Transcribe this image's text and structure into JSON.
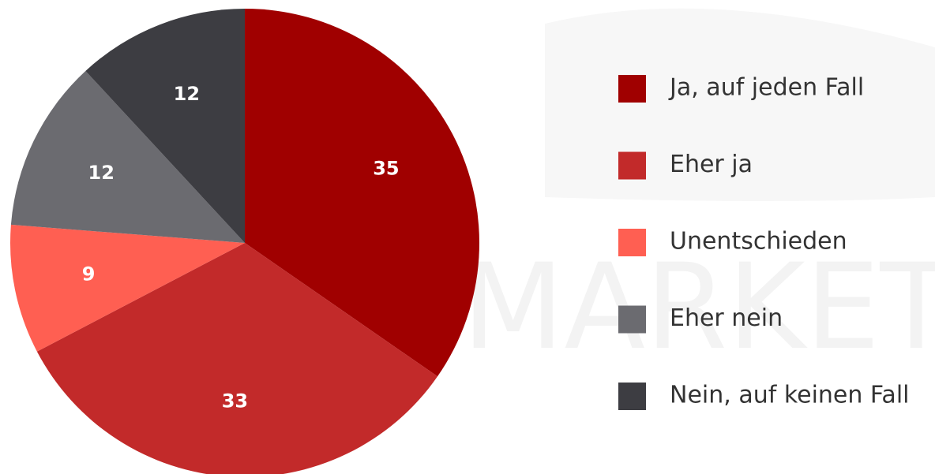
{
  "chart_data": {
    "type": "pie",
    "categories": [
      "Ja, auf jeden Fall",
      "Eher ja",
      "Unentschieden",
      "Eher nein",
      "Nein, auf keinen Fall"
    ],
    "values": [
      35,
      33,
      9,
      12,
      12
    ],
    "colors": [
      "#a00000",
      "#c22a2a",
      "#ff5f52",
      "#6b6b70",
      "#3d3d42"
    ],
    "legend": "right",
    "watermark": "MARKET"
  }
}
